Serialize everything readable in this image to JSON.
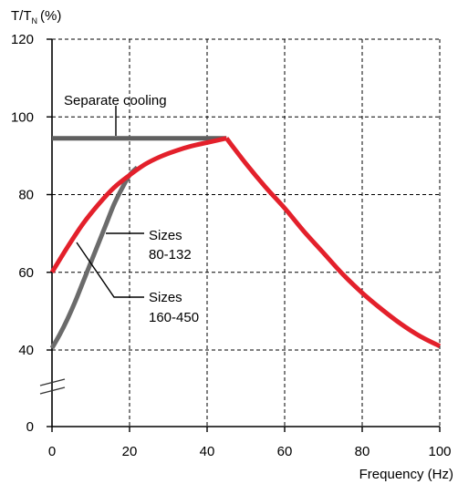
{
  "chart_data": {
    "type": "line",
    "ylabel_main": "T/T",
    "ylabel_sub": "N",
    "ylabel_unit": "(%)",
    "xlabel": "Frequency (Hz)",
    "xlim": [
      0,
      100
    ],
    "ylim": [
      0,
      120
    ],
    "y_axis_break": true,
    "grid": true,
    "x_ticks": [
      0,
      20,
      40,
      60,
      80,
      100
    ],
    "y_ticks": [
      0,
      40,
      60,
      80,
      100,
      120
    ],
    "series": [
      {
        "name": "Separate cooling",
        "color": "#5f5f5f",
        "x": [
          0,
          45
        ],
        "y": [
          94.5,
          94.5
        ]
      },
      {
        "name": "Sizes 160-450",
        "color": "#6b6b6b",
        "x": [
          0,
          2,
          4,
          6,
          8,
          10,
          12,
          14,
          16,
          18,
          20,
          22
        ],
        "y": [
          40.5,
          44,
          48,
          52.5,
          57.5,
          62.5,
          67.5,
          72.5,
          77.5,
          81.5,
          85,
          87
        ]
      },
      {
        "name": "Sizes 80-132",
        "color": "#e3202b",
        "x": [
          0,
          4,
          8,
          12,
          16,
          20,
          24,
          28,
          32,
          36,
          40,
          45,
          50,
          55,
          60,
          65,
          70,
          75,
          80,
          85,
          90,
          95,
          100
        ],
        "y": [
          60,
          66.5,
          72.5,
          77.5,
          81.8,
          85,
          87.8,
          89.8,
          91.3,
          92.5,
          93.4,
          94.5,
          88,
          82,
          76.5,
          70.5,
          65,
          59.5,
          54.7,
          50.5,
          46.7,
          43.5,
          41
        ]
      }
    ],
    "annotations": [
      {
        "text": "Separate cooling",
        "line": 1
      },
      {
        "text": "Sizes",
        "line": 1
      },
      {
        "text": "80-132",
        "line": 2
      },
      {
        "text": "Sizes",
        "line": 1
      },
      {
        "text": "160-450",
        "line": 2
      }
    ]
  }
}
